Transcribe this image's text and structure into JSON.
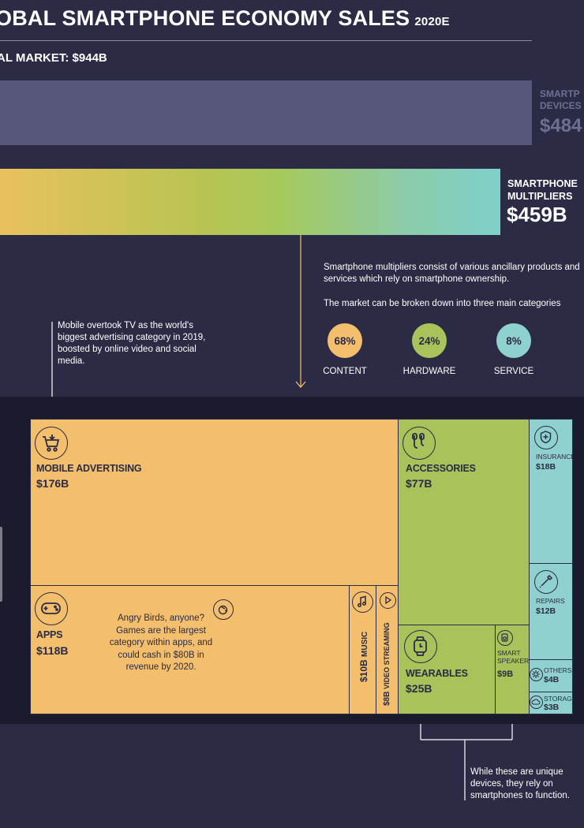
{
  "header": {
    "title": "OBAL SMARTPHONE ECONOMY SALES",
    "year": "2020E",
    "total": "AL MARKET: $944B"
  },
  "bars": {
    "devices": {
      "label_line1": "SMARTP",
      "label_line2": "DEVICES",
      "value": "$484"
    },
    "multipliers": {
      "label_line1": "SMARTPHONE",
      "label_line2": "MULTIPLIERS",
      "value": "$459B"
    }
  },
  "notes": {
    "multipliers_desc": "Smartphone multipliers consist of various ancillary products and services which rely on smartphone ownership.",
    "categories_intro": "The market can be broken down into three main categories",
    "mobile_ad": "Mobile overtook TV as the world's biggest advertising category in 2019, boosted by online video and social media.",
    "apps": "Angry Birds, anyone? Games are the largest category within apps, and could cash in $80B in revenue by 2020.",
    "wearables": "While these are unique devices, they rely on smartphones to function."
  },
  "categories": [
    {
      "pct": "68%",
      "label": "CONTENT",
      "color": "#f4bf6d"
    },
    {
      "pct": "24%",
      "label": "HARDWARE",
      "color": "#a9c35a"
    },
    {
      "pct": "8%",
      "label": "SERVICE",
      "color": "#8fd1cf"
    }
  ],
  "chart_data": {
    "type": "treemap",
    "title": "",
    "total_market_billions": 944,
    "bars": [
      {
        "name": "SMARTPHONE DEVICES",
        "value": 484
      },
      {
        "name": "SMARTPHONE MULTIPLIERS",
        "value": 459
      }
    ],
    "treemap": [
      {
        "group": "CONTENT",
        "name": "MOBILE ADVERTISING",
        "value": 176,
        "label": "$176B"
      },
      {
        "group": "CONTENT",
        "name": "APPS",
        "value": 118,
        "label": "$118B"
      },
      {
        "group": "CONTENT",
        "name": "MUSIC",
        "value": 10,
        "label": "$10B"
      },
      {
        "group": "CONTENT",
        "name": "VIDEO STREAMING",
        "value": 8,
        "label": "$8B"
      },
      {
        "group": "HARDWARE",
        "name": "ACCESSORIES",
        "value": 77,
        "label": "$77B"
      },
      {
        "group": "HARDWARE",
        "name": "WEARABLES",
        "value": 25,
        "label": "$25B"
      },
      {
        "group": "HARDWARE",
        "name": "SMART SPEAKERS",
        "value": 9,
        "label": "$9B"
      },
      {
        "group": "SERVICE",
        "name": "INSURANCE",
        "value": 18,
        "label": "$18B"
      },
      {
        "group": "SERVICE",
        "name": "REPAIRS",
        "value": 12,
        "label": "$12B"
      },
      {
        "group": "SERVICE",
        "name": "OTHERS",
        "value": 4,
        "label": "$4B"
      },
      {
        "group": "SERVICE",
        "name": "STORAGE",
        "value": 3,
        "label": "$3B"
      }
    ],
    "category_shares": [
      {
        "name": "CONTENT",
        "pct": 68
      },
      {
        "name": "HARDWARE",
        "pct": 24
      },
      {
        "name": "SERVICE",
        "pct": 8
      }
    ]
  }
}
